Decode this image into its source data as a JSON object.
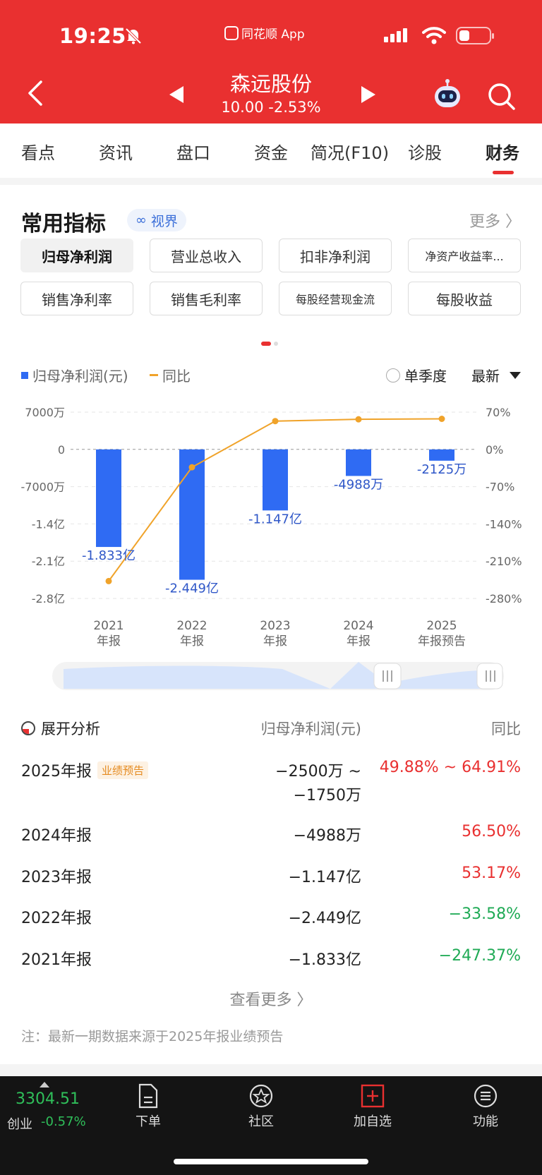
{
  "status": {
    "time": "19:25",
    "app_label": "同花顺 App"
  },
  "header": {
    "name": "森远股份",
    "price": "10.00",
    "change": "-2.53%"
  },
  "tabs": [
    "看点",
    "资讯",
    "盘口",
    "资金",
    "简况(F10)",
    "诊股",
    "财务"
  ],
  "active_tab": "财务",
  "section": {
    "title": "常用指标",
    "vision": "视界",
    "more": "更多 〉"
  },
  "indicators": [
    "归母净利润",
    "营业总收入",
    "扣非净利润",
    "净资产收益率...",
    "销售净利率",
    "销售毛利率",
    "每股经营现金流",
    "每股收益"
  ],
  "legend": {
    "bar": "归母净利润(元)",
    "line": "同比",
    "single_quarter": "单季度",
    "latest": "最新"
  },
  "chart_data": {
    "type": "bar+line",
    "categories": [
      "2021\n年报",
      "2022\n年报",
      "2023\n年报",
      "2024\n年报",
      "2025\n年报预告"
    ],
    "category_years": [
      "2021",
      "2022",
      "2023",
      "2024",
      "2025"
    ],
    "category_types": [
      "年报",
      "年报",
      "年报",
      "年报",
      "年报预告"
    ],
    "bar_values": [
      -183300000,
      -244900000,
      -114700000,
      -49880000,
      -21250000
    ],
    "bar_labels": [
      "-1.833亿",
      "-2.449亿",
      "-1.147亿",
      "-4988万",
      "-2125万"
    ],
    "line_values": [
      -247.37,
      -33.58,
      53.17,
      56.5,
      57.4
    ],
    "left_ticks": [
      "7000万",
      "0",
      "-7000万",
      "-1.4亿",
      "-2.1亿",
      "-2.8亿"
    ],
    "left_tick_values": [
      70000000,
      0,
      -70000000,
      -140000000,
      -210000000,
      -280000000
    ],
    "right_ticks": [
      "70%",
      "0%",
      "-70%",
      "-140%",
      "-210%",
      "-280%"
    ],
    "right_tick_values": [
      70,
      0,
      -70,
      -140,
      -210,
      -280
    ],
    "ylim_left": [
      -280000000,
      70000000
    ],
    "ylim_right": [
      -280,
      70
    ],
    "colors": {
      "bar": "#2f6bf3",
      "line": "#f0a32a",
      "label": "#2f57c8"
    }
  },
  "analysis": {
    "header_left": "展开分析",
    "header_mid": "归母净利润(元)",
    "header_right": "同比",
    "rows": [
      {
        "period": "2025年报",
        "badge": "业绩预告",
        "value": "−2500万 ~",
        "value2": "−1750万",
        "yoy": "49.88% ~ 64.91%",
        "dir": "up"
      },
      {
        "period": "2024年报",
        "value": "−4988万",
        "yoy": "56.50%",
        "dir": "up"
      },
      {
        "period": "2023年报",
        "value": "−1.147亿",
        "yoy": "53.17%",
        "dir": "up"
      },
      {
        "period": "2022年报",
        "value": "−2.449亿",
        "yoy": "−33.58%",
        "dir": "down"
      },
      {
        "period": "2021年报",
        "value": "−1.833亿",
        "yoy": "−247.37%",
        "dir": "down"
      }
    ],
    "see_more": "查看更多 〉",
    "note": "注：最新一期数据来源于2025年报业绩预告"
  },
  "bottom": {
    "index_value": "3304.51",
    "index_name": "创业",
    "index_change": "-0.57%",
    "nav": [
      "下单",
      "社区",
      "加自选",
      "功能"
    ]
  }
}
